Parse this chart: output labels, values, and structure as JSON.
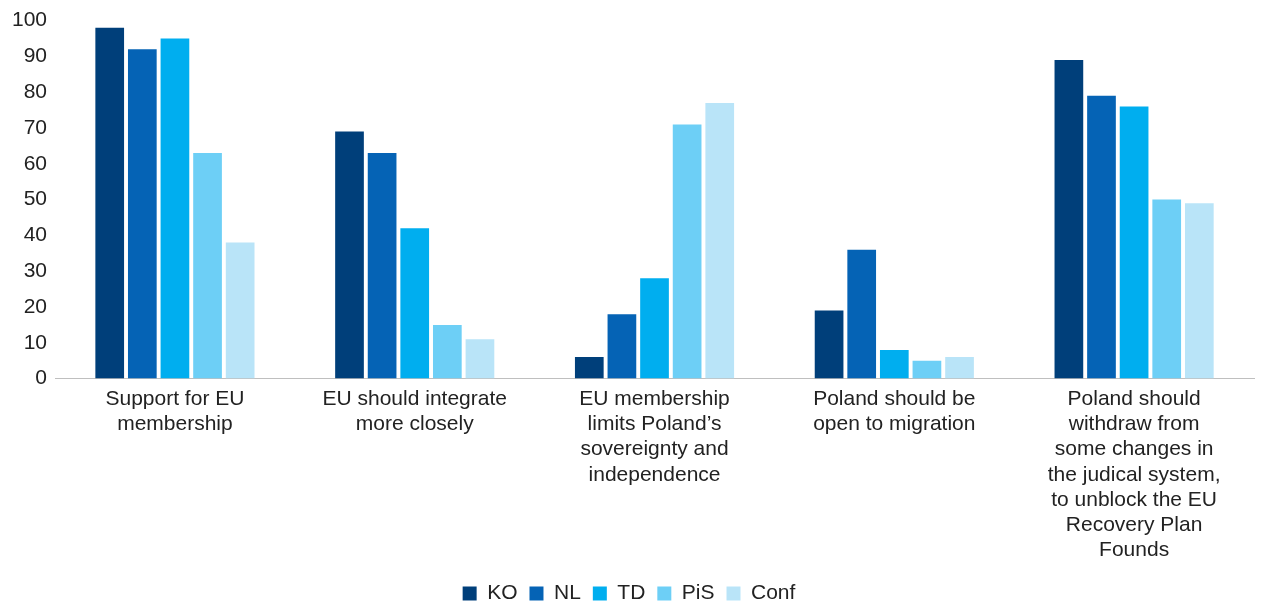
{
  "chart_data": {
    "type": "bar",
    "categories": [
      "Support for EU membership",
      "EU should integrate more closely",
      "EU membership limits Poland’s sovereignty and independence",
      "Poland should be open to migration",
      "Poland should withdraw from some changes in the judical system, to unblock the EU Recovery Plan Founds"
    ],
    "series": [
      {
        "name": "KO",
        "color": "#003f7a",
        "values": [
          98,
          69,
          6,
          19,
          89
        ]
      },
      {
        "name": "NL",
        "color": "#0563b5",
        "values": [
          92,
          63,
          18,
          36,
          79
        ]
      },
      {
        "name": "TD",
        "color": "#00aeef",
        "values": [
          95,
          42,
          28,
          8,
          76
        ]
      },
      {
        "name": "PiS",
        "color": "#6dcff6",
        "values": [
          63,
          15,
          71,
          5,
          50
        ]
      },
      {
        "name": "Conf",
        "color": "#b9e4f8",
        "values": [
          38,
          11,
          77,
          6,
          49
        ]
      }
    ],
    "ylim": [
      0,
      100
    ],
    "yticks": [
      0,
      10,
      20,
      30,
      40,
      50,
      60,
      70,
      80,
      90,
      100
    ],
    "grid": false,
    "legend": "bottom"
  }
}
